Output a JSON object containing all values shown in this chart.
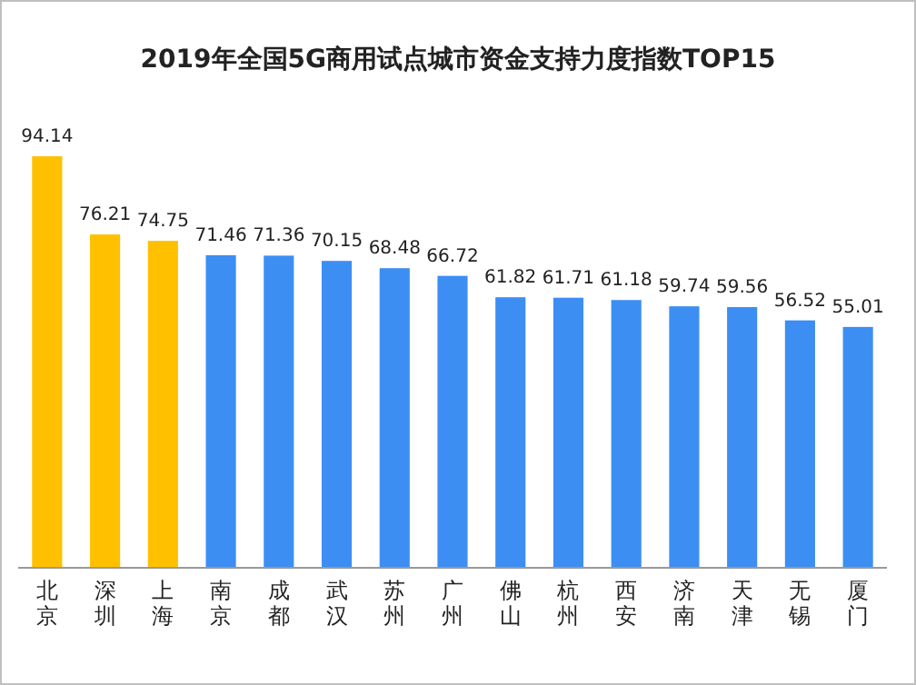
{
  "chart_data": {
    "type": "bar",
    "title": "2019年全国5G商用试点城市资金支持力度指数TOP15",
    "categories": [
      "北京",
      "深圳",
      "上海",
      "南京",
      "成都",
      "武汉",
      "苏州",
      "广州",
      "佛山",
      "杭州",
      "西安",
      "济南",
      "天津",
      "无锡",
      "厦门"
    ],
    "values": [
      94.14,
      76.21,
      74.75,
      71.46,
      71.36,
      70.15,
      68.48,
      66.72,
      61.82,
      61.71,
      61.18,
      59.74,
      59.56,
      56.52,
      55.01
    ],
    "colors": [
      "#ffc000",
      "#ffc000",
      "#ffc000",
      "#3c8ef3",
      "#3c8ef3",
      "#3c8ef3",
      "#3c8ef3",
      "#3c8ef3",
      "#3c8ef3",
      "#3c8ef3",
      "#3c8ef3",
      "#3c8ef3",
      "#3c8ef3",
      "#3c8ef3",
      "#3c8ef3"
    ],
    "data_labels": true
  }
}
